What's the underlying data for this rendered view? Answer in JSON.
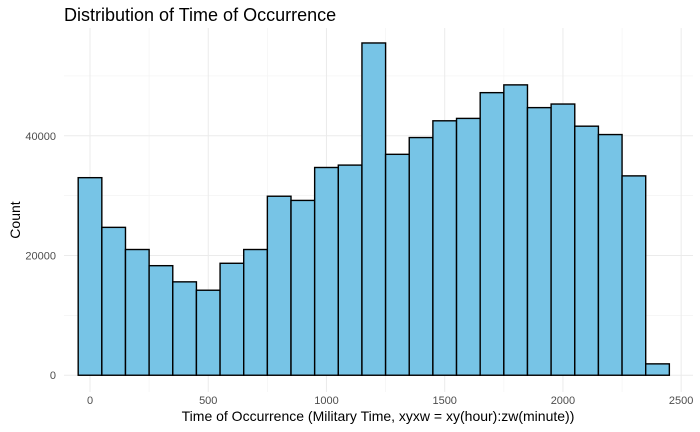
{
  "chart_data": {
    "type": "bar",
    "title": "Distribution of Time of Occurrence",
    "xlabel": "Time of Occurrence (Military Time, xyxw = xy(hour):zw(minute))",
    "ylabel": "Count",
    "bin_width": 100,
    "bin_centers": [
      0,
      100,
      200,
      300,
      400,
      500,
      600,
      700,
      800,
      900,
      1000,
      1100,
      1200,
      1300,
      1400,
      1500,
      1600,
      1700,
      1800,
      1900,
      2000,
      2100,
      2200,
      2300,
      2400
    ],
    "values": [
      33000,
      24700,
      21000,
      18300,
      15600,
      14200,
      18700,
      21000,
      29900,
      29200,
      34700,
      35100,
      55500,
      36900,
      39700,
      42500,
      42900,
      47200,
      48500,
      44700,
      45300,
      41600,
      40200,
      33300,
      1900
    ],
    "xlim": [
      -110,
      2550
    ],
    "ylim": [
      -2800,
      58000
    ],
    "x_ticks": [
      0,
      500,
      1000,
      1500,
      2000,
      2500
    ],
    "x_tick_labels": [
      "0",
      "500",
      "1000",
      "1500",
      "2000",
      "2500"
    ],
    "y_ticks": [
      0,
      20000,
      40000
    ],
    "y_tick_labels": [
      "0",
      "20000",
      "40000"
    ],
    "bar_color": "#77c4e6",
    "bar_edge_color": "#000000",
    "grid": true,
    "legend": "none"
  }
}
